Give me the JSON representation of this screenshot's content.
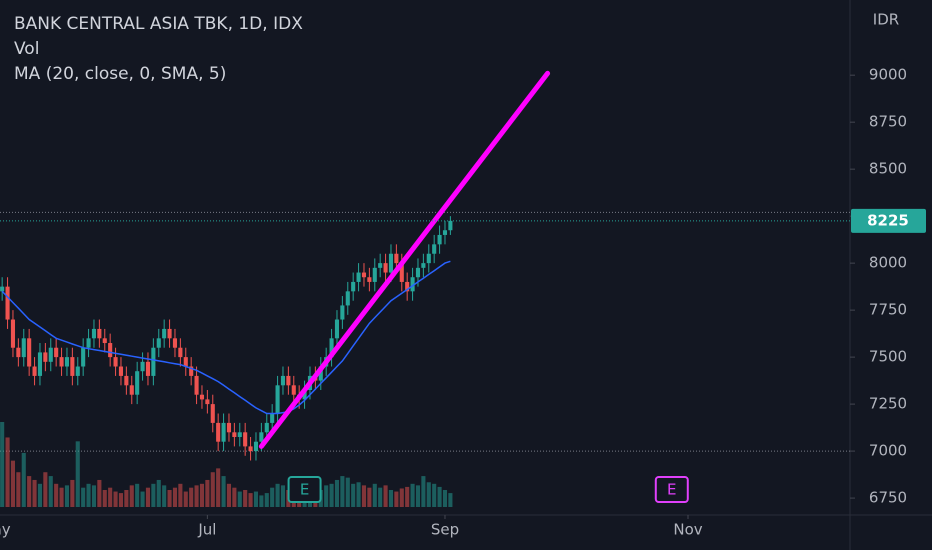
{
  "chart_data": {
    "type": "candlestick",
    "title": "BANK CENTRAL ASIA TBK, 1D, IDX",
    "indicators": [
      "Vol",
      "MA (20, close, 0, SMA, 5)"
    ],
    "currency": "IDR",
    "up_color": "#26a69a",
    "down_color": "#ef5350",
    "open": [
      7850,
      7875,
      7700,
      7550,
      7500,
      7600,
      7450,
      7400,
      7525,
      7475,
      7550,
      7500,
      7450,
      7500,
      7400,
      7450,
      7550,
      7600,
      7650,
      7600,
      7575,
      7500,
      7450,
      7400,
      7350,
      7300,
      7425,
      7475,
      7400,
      7550,
      7600,
      7650,
      7600,
      7550,
      7500,
      7450,
      7400,
      7300,
      7275,
      7250,
      7150,
      7050,
      7150,
      7100,
      7075,
      7100,
      7025,
      7000,
      7050,
      7100,
      7150,
      7200,
      7350,
      7400,
      7350,
      7300,
      7275,
      7325,
      7400,
      7375,
      7450,
      7500,
      7600,
      7700,
      7775,
      7850,
      7900,
      7950,
      7925,
      7900,
      7975,
      8000,
      7950,
      8050,
      8000,
      7900,
      7850,
      7925,
      7975,
      8000,
      8050,
      8100,
      8150,
      8175
    ],
    "high": [
      7925,
      7925,
      7750,
      7600,
      7650,
      7650,
      7500,
      7575,
      7575,
      7600,
      7600,
      7550,
      7550,
      7550,
      7500,
      7600,
      7650,
      7700,
      7700,
      7650,
      7625,
      7550,
      7500,
      7450,
      7400,
      7475,
      7525,
      7525,
      7600,
      7650,
      7700,
      7700,
      7650,
      7600,
      7550,
      7500,
      7450,
      7350,
      7325,
      7300,
      7200,
      7200,
      7200,
      7150,
      7150,
      7150,
      7075,
      7100,
      7150,
      7200,
      7250,
      7400,
      7450,
      7450,
      7400,
      7350,
      7375,
      7450,
      7450,
      7500,
      7550,
      7650,
      7750,
      7825,
      7900,
      7950,
      8000,
      8000,
      7975,
      8025,
      8050,
      8050,
      8100,
      8100,
      8050,
      7950,
      7975,
      8025,
      8050,
      8100,
      8150,
      8200,
      8225,
      8250
    ],
    "low": [
      7800,
      7650,
      7500,
      7450,
      7450,
      7400,
      7350,
      7350,
      7425,
      7425,
      7450,
      7400,
      7400,
      7350,
      7350,
      7400,
      7500,
      7550,
      7550,
      7525,
      7450,
      7400,
      7350,
      7300,
      7250,
      7250,
      7375,
      7350,
      7350,
      7500,
      7550,
      7550,
      7500,
      7450,
      7400,
      7350,
      7250,
      7225,
      7200,
      7100,
      7000,
      7000,
      7050,
      7025,
      7025,
      6975,
      6950,
      6950,
      7000,
      7050,
      7100,
      7150,
      7300,
      7300,
      7250,
      7225,
      7225,
      7275,
      7325,
      7325,
      7400,
      7450,
      7550,
      7650,
      7725,
      7800,
      7850,
      7875,
      7850,
      7850,
      7925,
      7900,
      7900,
      7950,
      7850,
      7800,
      7800,
      7875,
      7925,
      7950,
      8000,
      8050,
      8100,
      8150
    ],
    "close": [
      7875,
      7700,
      7550,
      7500,
      7600,
      7450,
      7400,
      7525,
      7475,
      7550,
      7500,
      7450,
      7500,
      7400,
      7450,
      7550,
      7600,
      7650,
      7600,
      7575,
      7500,
      7450,
      7400,
      7350,
      7300,
      7425,
      7475,
      7400,
      7550,
      7600,
      7650,
      7600,
      7550,
      7500,
      7450,
      7400,
      7300,
      7275,
      7250,
      7150,
      7050,
      7150,
      7100,
      7075,
      7100,
      7025,
      7000,
      7050,
      7100,
      7150,
      7200,
      7350,
      7400,
      7350,
      7300,
      7275,
      7325,
      7400,
      7375,
      7450,
      7500,
      7600,
      7700,
      7775,
      7850,
      7900,
      7950,
      7925,
      7900,
      7975,
      8000,
      7950,
      8050,
      8000,
      7900,
      7850,
      7925,
      7975,
      8000,
      8050,
      8100,
      8150,
      8175,
      8225
    ],
    "volume": [
      110,
      90,
      60,
      45,
      70,
      40,
      35,
      30,
      45,
      40,
      30,
      25,
      28,
      35,
      85,
      25,
      30,
      28,
      35,
      22,
      25,
      20,
      18,
      22,
      28,
      30,
      20,
      25,
      30,
      35,
      28,
      22,
      25,
      30,
      20,
      25,
      28,
      30,
      35,
      45,
      50,
      40,
      30,
      25,
      20,
      22,
      18,
      20,
      15,
      18,
      25,
      30,
      28,
      22,
      20,
      35,
      25,
      18,
      20,
      22,
      28,
      30,
      35,
      40,
      38,
      30,
      32,
      28,
      25,
      30,
      25,
      28,
      22,
      20,
      24,
      26,
      30,
      28,
      40,
      32,
      30,
      26,
      22,
      18
    ],
    "ma": {
      "color": "#2962ff",
      "values": [
        7850,
        7820,
        7790,
        7760,
        7730,
        7700,
        7680,
        7660,
        7640,
        7620,
        7600,
        7590,
        7580,
        7570,
        7560,
        7550,
        7545,
        7540,
        7535,
        7530,
        7525,
        7520,
        7515,
        7510,
        7505,
        7500,
        7495,
        7490,
        7485,
        7480,
        7475,
        7470,
        7465,
        7460,
        7450,
        7440,
        7430,
        7415,
        7400,
        7385,
        7370,
        7350,
        7330,
        7310,
        7290,
        7270,
        7250,
        7230,
        7215,
        7200,
        7200,
        7200,
        7205,
        7210,
        7225,
        7245,
        7270,
        7300,
        7330,
        7360,
        7390,
        7420,
        7450,
        7480,
        7520,
        7560,
        7600,
        7640,
        7680,
        7710,
        7740,
        7770,
        7800,
        7820,
        7840,
        7860,
        7880,
        7900,
        7920,
        7940,
        7960,
        7980,
        8000,
        8010
      ]
    },
    "trend_line": {
      "color": "#ff00ff",
      "x": [
        48,
        101
      ],
      "y": [
        7025,
        9010
      ]
    },
    "events": [
      {
        "x": 56,
        "label": "E",
        "color": "#26a69a"
      },
      {
        "x": 124,
        "label": "E",
        "color": "#e040fb"
      }
    ],
    "last_price": 8225,
    "dotted_lines": [
      8270,
      7000
    ],
    "xlim": [
      -0.4,
      157
    ],
    "xticks": [
      {
        "value": -1.3,
        "label": "May"
      },
      {
        "value": 38,
        "label": "Jul"
      },
      {
        "value": 82,
        "label": "Sep"
      },
      {
        "value": 127,
        "label": "Nov"
      }
    ],
    "ylim": [
      6660,
      9400
    ],
    "yticks": [
      6750,
      7000,
      7250,
      7500,
      7750,
      8000,
      8250,
      8500,
      8750,
      9000
    ]
  }
}
